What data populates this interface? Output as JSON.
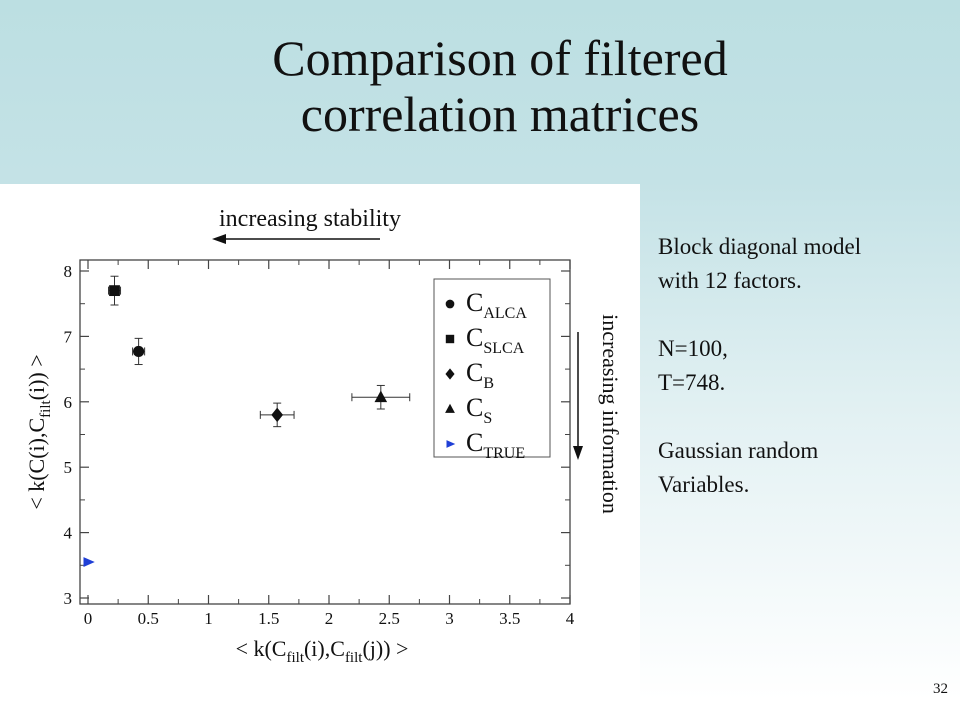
{
  "slide": {
    "title_line1": "Comparison of filtered",
    "title_line2": "correlation matrices",
    "page_number": "32"
  },
  "notes": {
    "line1": "Block diagonal model",
    "line2": "with 12 factors.",
    "line3": "N=100,",
    "line4": "T=748.",
    "line5": "Gaussian random",
    "line6": "Variables."
  },
  "colors": {
    "true_marker": "#1f3fd6",
    "marker": "#111111"
  },
  "chart_data": {
    "type": "scatter",
    "x_ticks": [
      "0",
      "0.5",
      "1",
      "1.5",
      "2",
      "2.5",
      "3",
      "3.5",
      "4"
    ],
    "y_ticks": [
      "3",
      "4",
      "5",
      "6",
      "7",
      "8"
    ],
    "xlim": [
      0,
      4
    ],
    "ylim": [
      3,
      8.2
    ],
    "xlabel": {
      "pre": "< k(C",
      "sub1": "filt",
      "mid": "(i),C",
      "sub2": "filt",
      "post": "(j)) >"
    },
    "ylabel": {
      "pre": "< k(C(i),C",
      "sub": "filt",
      "post": "(i)) >"
    },
    "top_annotation": "increasing stability",
    "right_annotation": "increasing information",
    "legend_placement": "top-right",
    "series": [
      {
        "name": "C",
        "sub": "ALCA",
        "marker": "circle",
        "x": 0.42,
        "y": 6.77,
        "xerr": 0.05,
        "yerr": 0.2
      },
      {
        "name": "C",
        "sub": "SLCA",
        "marker": "square",
        "x": 0.22,
        "y": 7.7,
        "xerr": 0.05,
        "yerr": 0.22
      },
      {
        "name": "C",
        "sub": "B",
        "marker": "diamond",
        "x": 1.57,
        "y": 5.8,
        "xerr": 0.14,
        "yerr": 0.18
      },
      {
        "name": "C",
        "sub": "S",
        "marker": "triangle",
        "x": 2.43,
        "y": 6.07,
        "xerr": 0.24,
        "yerr": 0.18
      },
      {
        "name": "C",
        "sub": "TRUE",
        "marker": "arrow",
        "x": 0.0,
        "y": 3.55,
        "xerr": 0,
        "yerr": 0
      }
    ]
  }
}
